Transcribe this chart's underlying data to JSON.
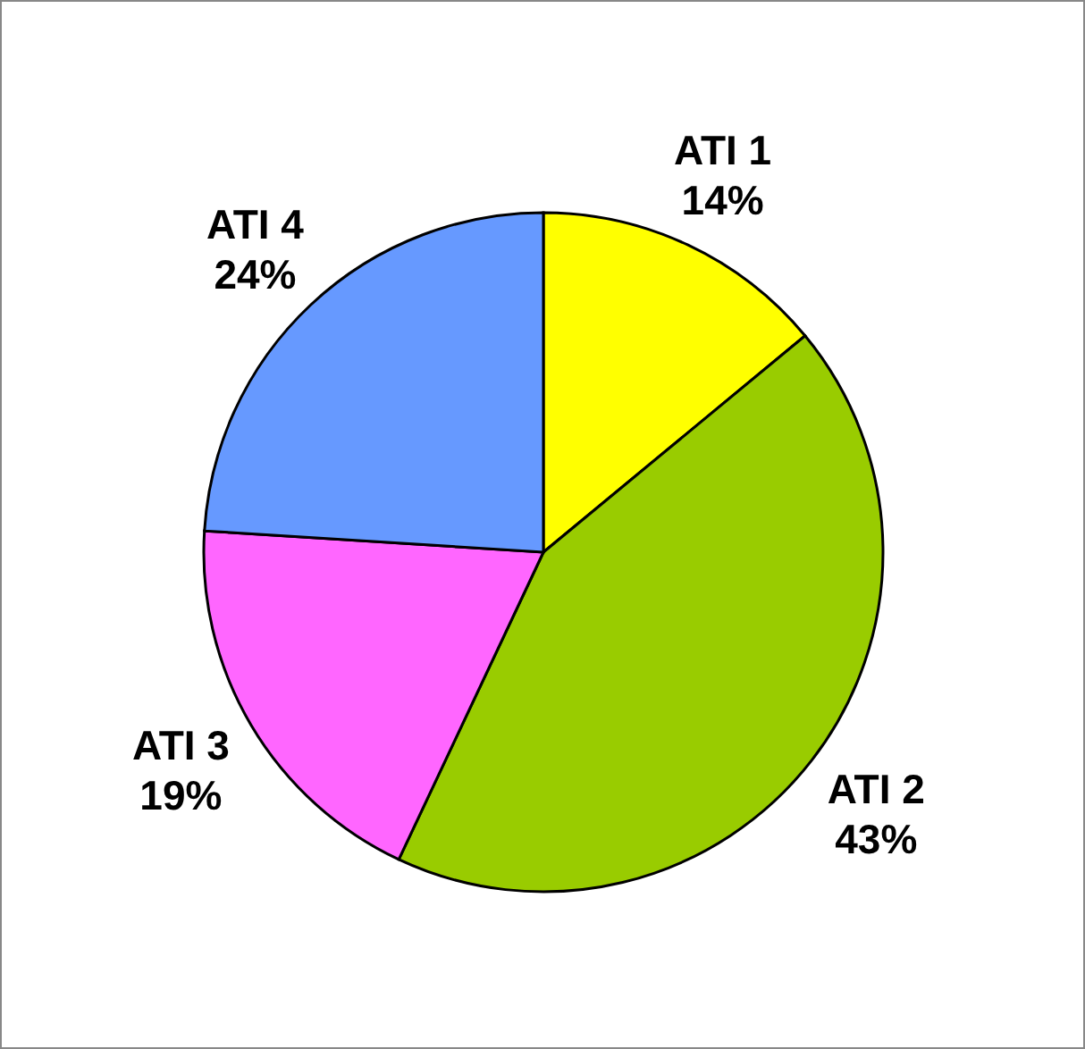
{
  "chart_data": {
    "type": "pie",
    "categories": [
      "ATI 1",
      "ATI 2",
      "ATI 3",
      "ATI 4"
    ],
    "values": [
      14,
      43,
      19,
      24
    ],
    "colors": [
      "#ffff00",
      "#99cc00",
      "#ff66ff",
      "#6699ff"
    ],
    "value_labels": [
      "14%",
      "43%",
      "19%",
      "24%"
    ],
    "legend": false
  }
}
